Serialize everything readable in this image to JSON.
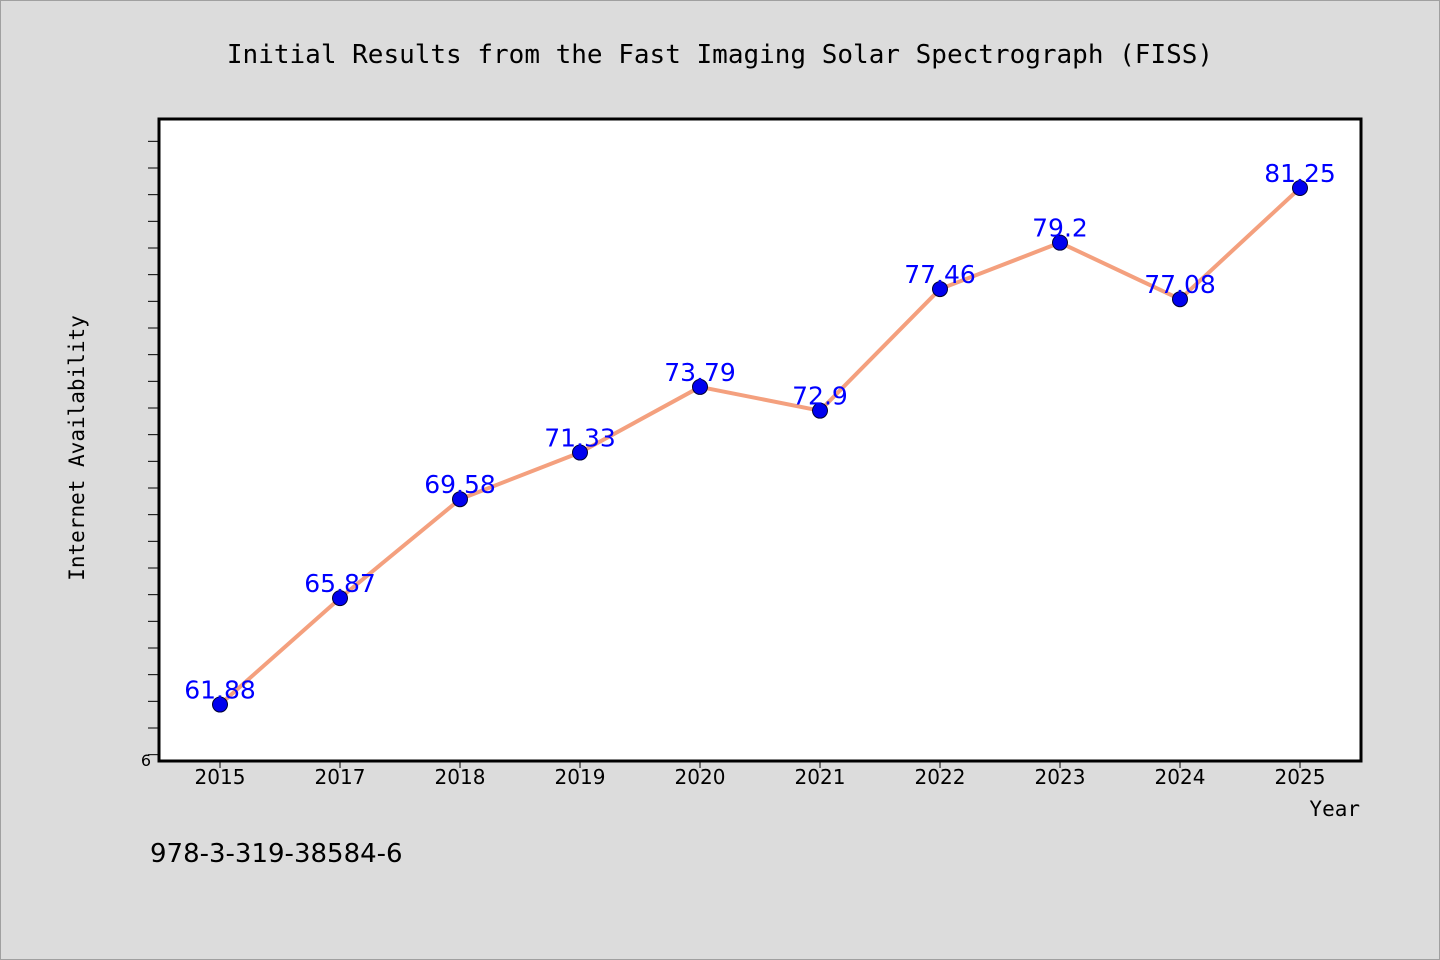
{
  "chart_data": {
    "type": "line",
    "title": "Initial Results from the Fast Imaging Solar Spectrograph (FISS)",
    "xlabel": "Year",
    "ylabel": "Internet Availability",
    "categories": [
      "2015",
      "2017",
      "2018",
      "2019",
      "2020",
      "2021",
      "2022",
      "2023",
      "2024",
      "2025"
    ],
    "series": [
      {
        "values": [
          61.88,
          65.87,
          69.58,
          71.33,
          73.79,
          72.9,
          77.46,
          79.2,
          77.08,
          81.25
        ],
        "labels": [
          "61.88",
          "65.87",
          "69.58",
          "71.33",
          "73.79",
          "72.9",
          "77.46",
          "79.2",
          "77.08",
          "81.25"
        ]
      }
    ],
    "y_tick_label": "6",
    "ylim": [
      59.8,
      83.8
    ],
    "y_minor_step": 1,
    "grid": false,
    "line_color": "#f4a07e",
    "marker_color": "#0000ee",
    "label_color": "#0000ff"
  },
  "footer": {
    "isbn": "978-3-319-38584-6"
  }
}
